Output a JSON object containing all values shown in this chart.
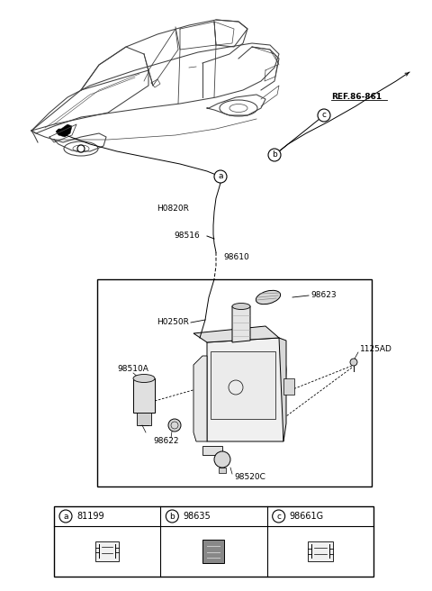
{
  "bg_color": "#ffffff",
  "car_edge": "#404040",
  "labels": {
    "ref": "REF.86-861",
    "h0820r": "H0820R",
    "h0250r": "H0250R",
    "l98516": "98516",
    "l98610": "98610",
    "l98623": "98623",
    "l98510a": "98510A",
    "l98622": "98622",
    "l98520c": "98520C",
    "l1125ad": "1125AD",
    "a_num": "81199",
    "b_num": "98635",
    "c_num": "98661G"
  },
  "part_table": [
    {
      "circle": "a",
      "number": "81199"
    },
    {
      "circle": "b",
      "number": "98635"
    },
    {
      "circle": "c",
      "number": "98661G"
    }
  ]
}
